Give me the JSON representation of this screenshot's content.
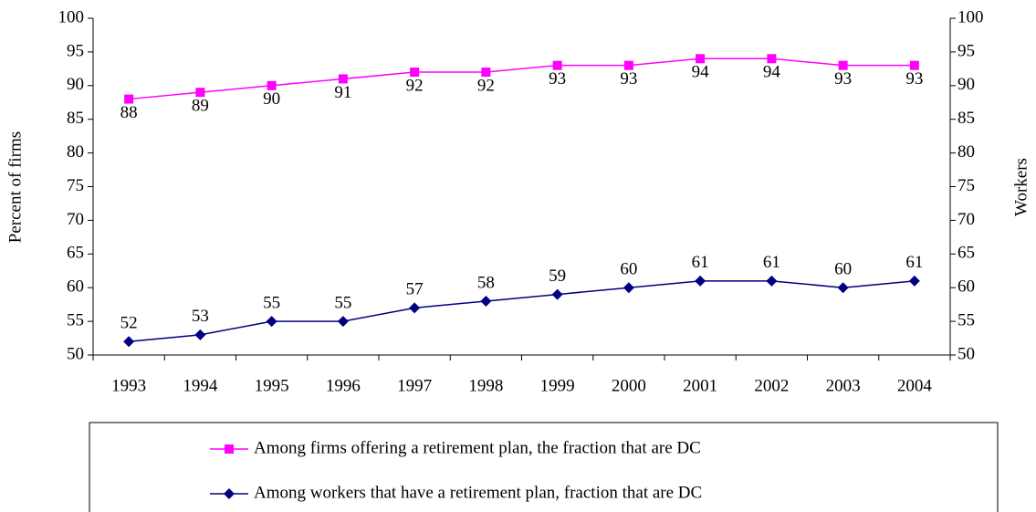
{
  "chart_data": {
    "type": "line",
    "categories": [
      "1993",
      "1994",
      "1995",
      "1996",
      "1997",
      "1998",
      "1999",
      "2000",
      "2001",
      "2002",
      "2003",
      "2004"
    ],
    "series": [
      {
        "name": "Among firms offering a retirement plan, the fraction that are DC",
        "color": "#ff00ff",
        "marker": "square",
        "values": [
          88,
          89,
          90,
          91,
          92,
          92,
          93,
          93,
          94,
          94,
          93,
          93
        ]
      },
      {
        "name": "Among workers that have a retirement plan, fraction that are DC",
        "color": "#000080",
        "marker": "diamond",
        "axis": "y2",
        "values": [
          52,
          53,
          55,
          55,
          57,
          58,
          59,
          60,
          61,
          61,
          60,
          61
        ]
      }
    ],
    "y_label": "Percent of firms",
    "y2_label": "Workers",
    "ylim": [
      50,
      100
    ],
    "yticks": [
      50,
      55,
      60,
      65,
      70,
      75,
      80,
      85,
      90,
      95,
      100
    ],
    "y2lim": [
      50,
      100
    ],
    "y2ticks": [
      50,
      55,
      60,
      65,
      70,
      75,
      80,
      85,
      90,
      95,
      100
    ],
    "grid": false,
    "legend": "bottom"
  }
}
